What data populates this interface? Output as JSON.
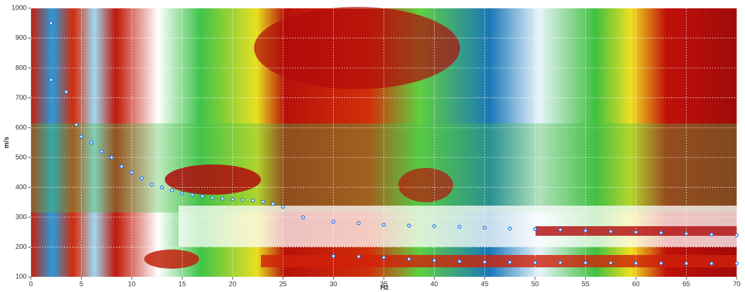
{
  "chart_data": {
    "type": "scatter",
    "x_label": "Hz",
    "y_label": "m/s",
    "xlim": [
      0,
      70
    ],
    "ylim": [
      100,
      1000
    ],
    "xticks": [
      0,
      5,
      10,
      15,
      20,
      25,
      30,
      35,
      40,
      45,
      50,
      55,
      60,
      65,
      70
    ],
    "yticks": [
      100,
      200,
      300,
      400,
      500,
      600,
      700,
      800,
      900,
      1000
    ],
    "grid": true,
    "series": [
      {
        "color": "#1f6fe8",
        "x": [
          2,
          2,
          3.5,
          4.5,
          5,
          6,
          7,
          8,
          9,
          10,
          11,
          12,
          13,
          14,
          15,
          16,
          17,
          18,
          19,
          20,
          21,
          22,
          23,
          24,
          25
        ],
        "values": [
          950,
          760,
          720,
          610,
          570,
          550,
          520,
          500,
          470,
          450,
          430,
          410,
          400,
          390,
          380,
          375,
          370,
          365,
          362,
          360,
          358,
          356,
          352,
          345,
          335
        ]
      },
      {
        "color": "#1f6fe8",
        "x": [
          27,
          30,
          32.5,
          35,
          37.5,
          40,
          42.5,
          45,
          47.5,
          50,
          52.5,
          55,
          57.5,
          60,
          62.5,
          65,
          67.5,
          70
        ],
        "values": [
          300,
          285,
          280,
          275,
          272,
          270,
          268,
          265,
          262,
          260,
          258,
          255,
          252,
          250,
          248,
          245,
          242,
          240
        ]
      },
      {
        "color": "#1f6fe8",
        "x": [
          30,
          32.5,
          35,
          37.5,
          40,
          42.5,
          45,
          47.5,
          50,
          52.5,
          55,
          57.5,
          60,
          62.5,
          65,
          67.5,
          70
        ],
        "values": [
          170,
          168,
          165,
          160,
          155,
          152,
          150,
          149,
          148,
          148,
          147,
          147,
          146,
          146,
          145,
          145,
          145
        ]
      }
    ]
  }
}
